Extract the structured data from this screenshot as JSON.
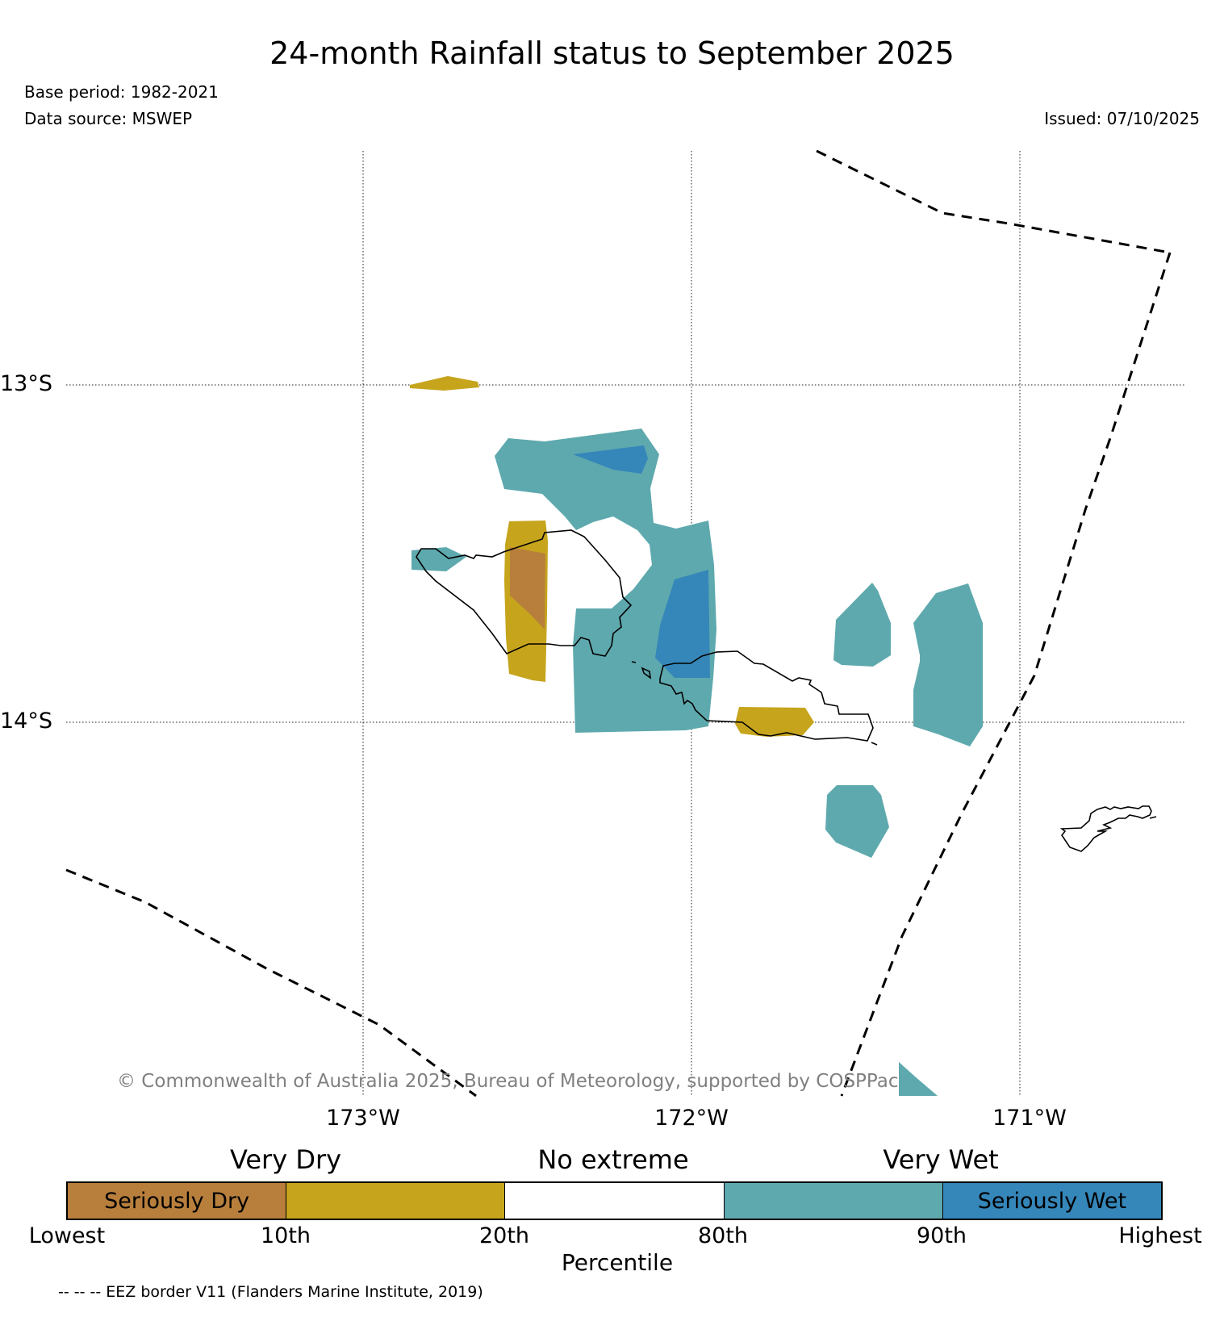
{
  "header": {
    "title": "24-month Rainfall status to September 2025",
    "base_period": "Base period: 1982-2021",
    "data_source": "Data source: MSWEP",
    "issued": "Issued: 07/10/2025"
  },
  "map": {
    "lat_labels": [
      "13°S",
      "14°S"
    ],
    "lon_labels": [
      "173°W",
      "172°W",
      "171°W"
    ],
    "copyright": "© Commonwealth of Australia 2025, Bureau of Meteorology, supported by COSPPac",
    "colors": {
      "seriously_dry": "#b87f3c",
      "very_dry": "#c6a41c",
      "no_extreme": "#ffffff",
      "very_wet": "#5ea9ae",
      "seriously_wet": "#3586b9",
      "eez_border": "#000000",
      "coastline": "#000000",
      "gridline": "#000000"
    }
  },
  "legend": {
    "groups": [
      "Very Dry",
      "No extreme",
      "Very Wet"
    ],
    "segments": [
      {
        "label": "Seriously Dry",
        "color": "#b87f3c"
      },
      {
        "label": "",
        "color": "#c6a41c"
      },
      {
        "label": "",
        "color": "#ffffff"
      },
      {
        "label": "",
        "color": "#5ea9ae"
      },
      {
        "label": "Seriously Wet",
        "color": "#3586b9"
      }
    ],
    "ticks": [
      "Lowest",
      "10th",
      "20th",
      "80th",
      "90th",
      "Highest"
    ],
    "axis_label": "Percentile"
  },
  "footnote": "-- -- -- EEZ border V11 (Flanders Marine Institute, 2019)"
}
